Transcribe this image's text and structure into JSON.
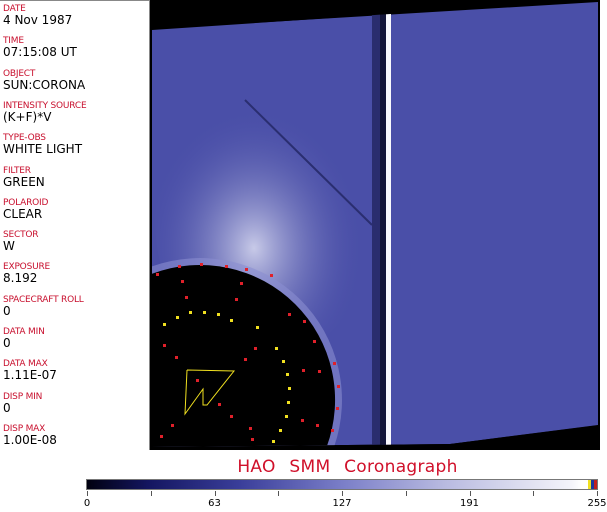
{
  "fields": [
    {
      "label": "DATE",
      "value": "4 Nov 1987"
    },
    {
      "label": "TIME",
      "value": "07:15:08 UT"
    },
    {
      "label": "OBJECT",
      "value": "SUN:CORONA"
    },
    {
      "label": "INTENSITY SOURCE",
      "value": "(K+F)*V"
    },
    {
      "label": "TYPE-OBS",
      "value": "WHITE LIGHT"
    },
    {
      "label": "FILTER",
      "value": "GREEN"
    },
    {
      "label": "POLAROID",
      "value": "CLEAR"
    },
    {
      "label": "SECTOR",
      "value": "W"
    },
    {
      "label": "EXPOSURE",
      "value": "8.192"
    },
    {
      "label": "SPACECRAFT ROLL",
      "value": "0"
    },
    {
      "label": "DATA MIN",
      "value": "0"
    },
    {
      "label": "DATA MAX",
      "value": "1.11E-07"
    },
    {
      "label": "DISP MIN",
      "value": "0"
    },
    {
      "label": "DISP MAX",
      "value": "1.00E-08"
    }
  ],
  "title": "HAO SMM Coronagraph",
  "colorbar": {
    "ticks": [
      "0",
      "63",
      "127",
      "191",
      "255"
    ],
    "colors": {
      "background": "#4a4fa8",
      "label": "#c8102e",
      "marker_red": "#e0202a",
      "marker_yellow": "#f0e020"
    }
  }
}
